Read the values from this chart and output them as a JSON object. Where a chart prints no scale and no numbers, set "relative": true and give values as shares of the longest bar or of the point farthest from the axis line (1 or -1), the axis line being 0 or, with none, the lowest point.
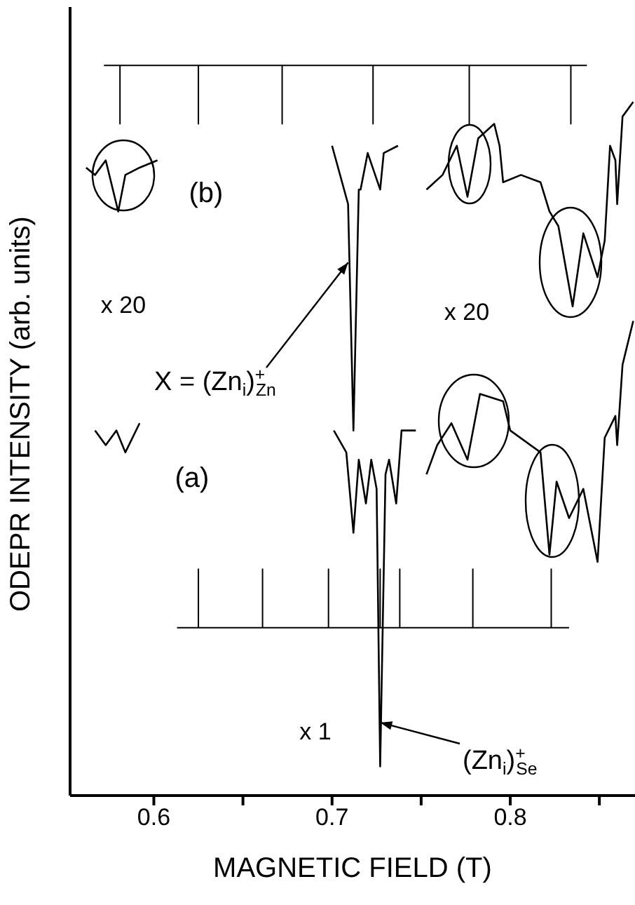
{
  "chart_data": {
    "type": "line",
    "xlabel": "MAGNETIC FIELD (T)",
    "ylabel": "ODEPR INTENSITY (arb. units)",
    "relative": true,
    "marker": "none",
    "xlim": [
      0.553,
      0.87
    ],
    "xticks": [
      0.6,
      {
        "value": 0.65,
        "label": null
      },
      0.7,
      {
        "value": 0.75,
        "label": null
      },
      0.8,
      {
        "value": 0.85,
        "label": null
      }
    ],
    "series": [
      {
        "color": "#000000",
        "x": [
          0.562,
          0.567,
          0.573,
          0.576,
          0.58,
          0.584,
          0.592,
          0.602,
          0.65,
          0.7,
          0.709,
          0.712,
          0.715,
          0.716,
          0.72,
          0.727,
          0.729,
          0.737,
          0.745,
          0.753,
          0.762,
          0.77,
          0.776,
          0.782,
          0.791,
          0.794,
          0.796,
          0.806,
          0.817,
          0.822,
          0.827,
          0.835,
          0.841,
          0.849,
          0.853,
          0.856,
          0.859,
          0.86,
          0.863,
          0.869
        ],
        "values": [
          0.86,
          0.85,
          0.87,
          0.84,
          0.8,
          0.85,
          0.86,
          0.87,
          null,
          0.89,
          0.81,
          0.5,
          0.83,
          0.83,
          0.88,
          0.83,
          0.88,
          0.89,
          null,
          0.83,
          0.85,
          0.89,
          0.82,
          0.9,
          0.92,
          0.89,
          0.84,
          0.85,
          0.84,
          0.8,
          0.78,
          0.67,
          0.77,
          0.71,
          0.76,
          0.89,
          0.87,
          0.81,
          0.93,
          0.95
        ]
      },
      {
        "color": "#000000",
        "x": [
          0.567,
          0.573,
          0.579,
          0.584,
          0.592,
          0.65,
          0.701,
          0.708,
          0.712,
          0.715,
          0.719,
          0.722,
          0.725,
          0.727,
          0.73,
          0.732,
          0.736,
          0.739,
          0.747,
          0.75,
          0.753,
          0.759,
          0.767,
          0.776,
          0.783,
          0.796,
          0.8,
          0.817,
          0.822,
          0.826,
          0.833,
          0.841,
          0.849,
          0.853,
          0.859,
          0.86,
          0.863,
          0.869
        ],
        "values": [
          0.5,
          0.48,
          0.5,
          0.47,
          0.51,
          null,
          0.5,
          0.47,
          0.36,
          0.46,
          0.4,
          0.46,
          0.42,
          0.04,
          0.44,
          0.46,
          0.4,
          0.5,
          0.5,
          null,
          0.44,
          0.48,
          0.51,
          0.46,
          0.55,
          0.54,
          0.5,
          0.47,
          0.33,
          0.43,
          0.38,
          0.42,
          0.32,
          0.49,
          0.52,
          0.48,
          0.59,
          0.65
        ]
      },
      {
        "color": "#000000",
        "x": [
          0.572,
          0.581,
          0.581,
          0.581,
          0.625,
          0.625,
          0.625,
          0.672,
          0.672,
          0.672,
          0.723,
          0.723,
          0.723,
          0.777,
          0.777,
          0.777,
          0.834,
          0.834,
          0.834,
          0.843
        ],
        "values": [
          1,
          1,
          0.92,
          1,
          1,
          0.92,
          1,
          1,
          0.92,
          1,
          1,
          0.92,
          1,
          1,
          0.92,
          1,
          1,
          0.92,
          1,
          1
        ]
      },
      {
        "color": "#000000",
        "x": [
          0.613,
          0.625,
          0.625,
          0.625,
          0.661,
          0.661,
          0.661,
          0.698,
          0.698,
          0.698,
          0.727,
          0.727,
          0.727,
          0.738,
          0.738,
          0.738,
          0.779,
          0.779,
          0.779,
          0.823,
          0.823,
          0.823,
          0.833
        ],
        "values": [
          0.23,
          0.23,
          0.31,
          0.23,
          0.23,
          0.31,
          0.23,
          0.23,
          0.31,
          0.23,
          0.23,
          0.31,
          0.23,
          0.23,
          0.31,
          0.23,
          0.23,
          0.31,
          0.23,
          0.23,
          0.31,
          0.23,
          0.23
        ]
      }
    ],
    "annotations": [
      "(b)",
      "x 20",
      "x 20",
      "(a)",
      "x 1",
      {
        "text": "X = (Zn$_{i}$)$^{+}$$_{Zn}$",
        "x": 0.709,
        "y": 0.73
      },
      {
        "text": "(Zn$_{i}$)$^{+}$$_{Se}$",
        "x": 0.727,
        "y": 0.1
      }
    ]
  }
}
